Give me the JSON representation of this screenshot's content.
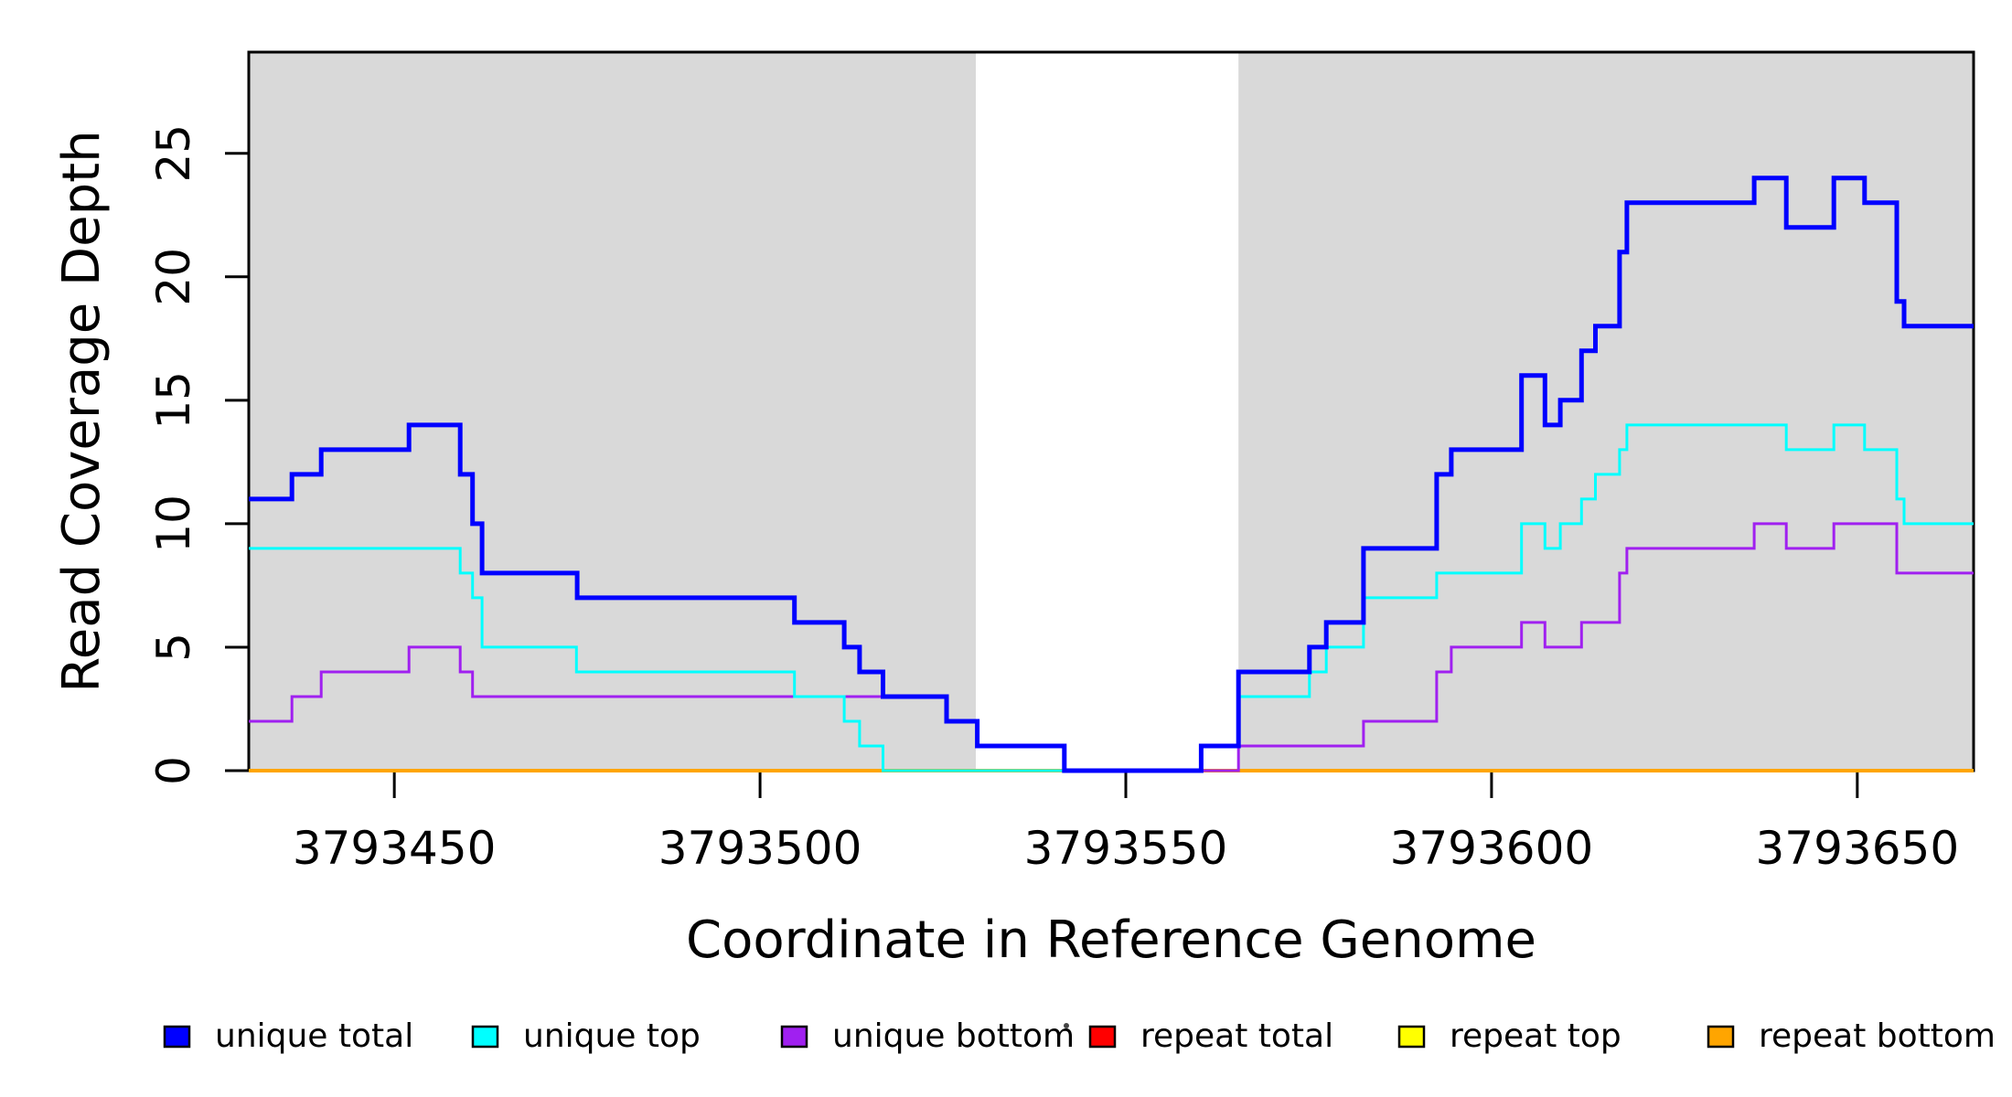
{
  "chart_data": {
    "type": "line",
    "subtype": "step",
    "title": "",
    "xlabel": "Coordinate in Reference Genome",
    "ylabel": "Read Coverage Depth",
    "xlim": [
      3793430.1,
      3793665.9
    ],
    "ylim": [
      0,
      29.1
    ],
    "grid": false,
    "legend_position": "bottom",
    "x_ticks": [
      3793450,
      3793500,
      3793550,
      3793600,
      3793650
    ],
    "x_tick_labels": [
      "3793450",
      "3793500",
      "3793550",
      "3793600",
      "3793650"
    ],
    "y_ticks": [
      0,
      5,
      10,
      15,
      20,
      25
    ],
    "y_tick_labels": [
      "0",
      "5",
      "10",
      "15",
      "20",
      "25"
    ],
    "axis_color": "#000000",
    "shaded_regions": [
      {
        "from": 3793430.1,
        "to": 3793529.5,
        "color": "#D9D9D9"
      },
      {
        "from": 3793565.4,
        "to": 3793665.9,
        "color": "#D9D9D9"
      }
    ],
    "x_end": 3793665.9,
    "draw_order": [
      3,
      4,
      5,
      2,
      1,
      0
    ],
    "series": [
      {
        "name": "unique total",
        "color": "#0000FF",
        "line_width": 5,
        "steps": [
          [
            3793430.1,
            11
          ],
          [
            3793436,
            12
          ],
          [
            3793440,
            13
          ],
          [
            3793452,
            14
          ],
          [
            3793459,
            12
          ],
          [
            3793460.7,
            10
          ],
          [
            3793462,
            8
          ],
          [
            3793475,
            7
          ],
          [
            3793504.7,
            6
          ],
          [
            3793511.5,
            5
          ],
          [
            3793513.6,
            4
          ],
          [
            3793516.8,
            3
          ],
          [
            3793525.5,
            2
          ],
          [
            3793529.7,
            1
          ],
          [
            3793541.6,
            0
          ],
          [
            3793560.3,
            1
          ],
          [
            3793565.4,
            4
          ],
          [
            3793575.1,
            5
          ],
          [
            3793577.4,
            6
          ],
          [
            3793582.5,
            9
          ],
          [
            3793592.5,
            12
          ],
          [
            3793594.5,
            13
          ],
          [
            3793604.1,
            16
          ],
          [
            3793607.3,
            14
          ],
          [
            3793609.4,
            15
          ],
          [
            3793612.3,
            17
          ],
          [
            3793614.2,
            18
          ],
          [
            3793617.5,
            21
          ],
          [
            3793618.5,
            23
          ],
          [
            3793635.9,
            24
          ],
          [
            3793640.3,
            22
          ],
          [
            3793646.8,
            24
          ],
          [
            3793651,
            23
          ],
          [
            3793655.4,
            19
          ],
          [
            3793656.4,
            18
          ]
        ]
      },
      {
        "name": "unique top",
        "color": "#00FFFF",
        "line_width": 3,
        "steps": [
          [
            3793430.1,
            9
          ],
          [
            3793459,
            8
          ],
          [
            3793460.7,
            7
          ],
          [
            3793462,
            5
          ],
          [
            3793474.9,
            4
          ],
          [
            3793504.7,
            3
          ],
          [
            3793511.5,
            2
          ],
          [
            3793513.6,
            1
          ],
          [
            3793516.8,
            0
          ],
          [
            3793560.3,
            1
          ],
          [
            3793565.4,
            3
          ],
          [
            3793575.1,
            4
          ],
          [
            3793577.4,
            5
          ],
          [
            3793582.5,
            7
          ],
          [
            3793592.5,
            8
          ],
          [
            3793604.1,
            10
          ],
          [
            3793607.3,
            9
          ],
          [
            3793609.4,
            10
          ],
          [
            3793612.3,
            11
          ],
          [
            3793614.2,
            12
          ],
          [
            3793617.5,
            13
          ],
          [
            3793618.5,
            14
          ],
          [
            3793640.3,
            13
          ],
          [
            3793646.8,
            14
          ],
          [
            3793651,
            13
          ],
          [
            3793655.4,
            11
          ],
          [
            3793656.4,
            10
          ]
        ]
      },
      {
        "name": "unique bottom",
        "color": "#A020F0",
        "line_width": 3,
        "steps": [
          [
            3793430.1,
            2
          ],
          [
            3793436,
            3
          ],
          [
            3793440,
            4
          ],
          [
            3793452,
            5
          ],
          [
            3793459,
            4
          ],
          [
            3793460.7,
            3
          ],
          [
            3793525.5,
            2
          ],
          [
            3793529.7,
            1
          ],
          [
            3793541.6,
            0
          ],
          [
            3793565.4,
            1
          ],
          [
            3793582.5,
            2
          ],
          [
            3793592.5,
            4
          ],
          [
            3793594.5,
            5
          ],
          [
            3793604.1,
            6
          ],
          [
            3793607.3,
            5
          ],
          [
            3793612.3,
            6
          ],
          [
            3793617.5,
            8
          ],
          [
            3793618.5,
            9
          ],
          [
            3793635.9,
            10
          ],
          [
            3793640.3,
            9
          ],
          [
            3793646.8,
            10
          ],
          [
            3793655.4,
            8
          ]
        ]
      },
      {
        "name": "repeat total",
        "color": "#FF0000",
        "line_width": 3,
        "steps": [
          [
            3793430.1,
            0
          ]
        ]
      },
      {
        "name": "repeat top",
        "color": "#FFFF00",
        "line_width": 3,
        "steps": [
          [
            3793430.1,
            0
          ]
        ]
      },
      {
        "name": "repeat bottom",
        "color": "#FFA500",
        "line_width": 4,
        "steps": [
          [
            3793430.1,
            0
          ]
        ]
      }
    ],
    "legend": {
      "labels": [
        "unique total",
        "unique top",
        "unique bottom",
        "repeat total",
        "repeat top",
        "repeat bottom"
      ],
      "swatch_colors": [
        "#0000FF",
        "#00FFFF",
        "#A020F0",
        "#FF0000",
        "#FFFF00",
        "#FFA500"
      ],
      "has_stray_dot": true
    }
  }
}
